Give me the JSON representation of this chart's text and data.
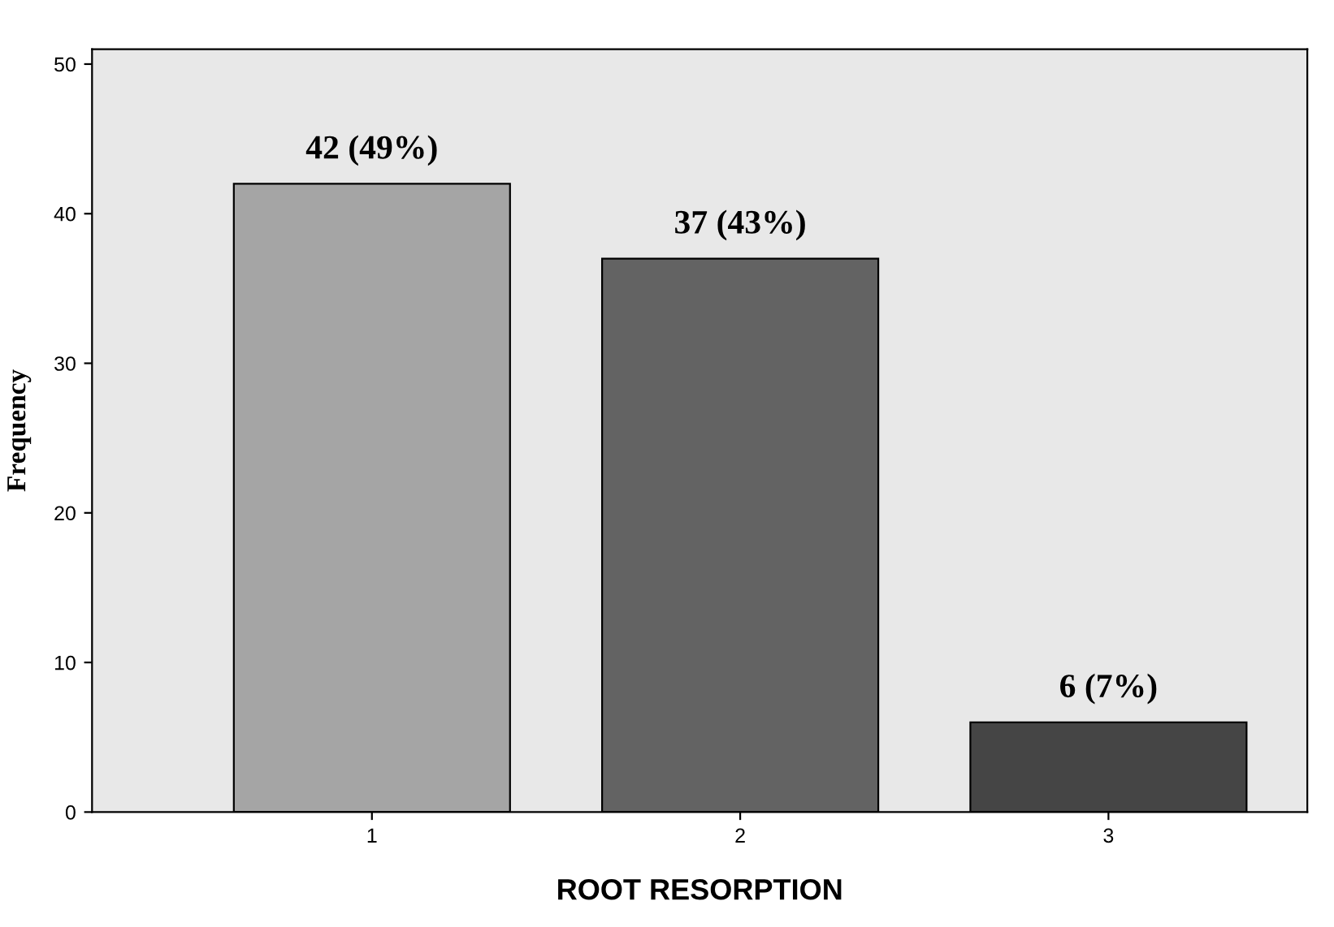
{
  "chart_data": {
    "type": "bar",
    "xlabel": "ROOT RESORPTION",
    "ylabel": "Frequency",
    "categories": [
      "1",
      "2",
      "3"
    ],
    "values": [
      42,
      37,
      6
    ],
    "colors": [
      "#a5a5a5",
      "#636363",
      "#454545"
    ],
    "value_labels": [
      "42 (49%)",
      "37 (43%)",
      "6 (7%)"
    ],
    "ylim": [
      0,
      51
    ],
    "yticks": [
      0,
      10,
      20,
      30,
      40,
      50
    ],
    "grid": false,
    "legend": false
  }
}
